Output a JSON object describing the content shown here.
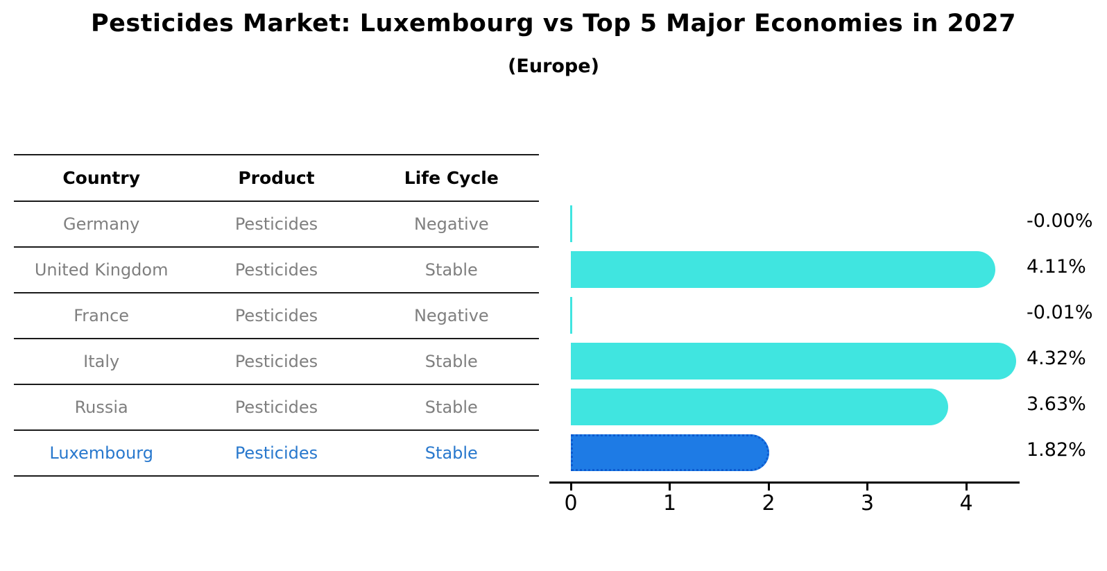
{
  "title": "Pesticides Market: Luxembourg vs Top 5 Major Economies in 2027",
  "subtitle": "(Europe)",
  "table": {
    "headers": [
      "Country",
      "Product",
      "Life Cycle"
    ],
    "rows": [
      {
        "country": "Germany",
        "product": "Pesticides",
        "life_cycle": "Negative",
        "highlight": false
      },
      {
        "country": "United Kingdom",
        "product": "Pesticides",
        "life_cycle": "Stable",
        "highlight": false
      },
      {
        "country": "France",
        "product": "Pesticides",
        "life_cycle": "Negative",
        "highlight": false
      },
      {
        "country": "Italy",
        "product": "Pesticides",
        "life_cycle": "Stable",
        "highlight": false
      },
      {
        "country": "Russia",
        "product": "Pesticides",
        "life_cycle": "Stable",
        "highlight": false
      },
      {
        "country": "Luxembourg",
        "product": "Pesticides",
        "life_cycle": "Stable",
        "highlight": true
      }
    ]
  },
  "chart_data": {
    "type": "bar",
    "orientation": "horizontal",
    "title": "Pesticides Market: Luxembourg vs Top 5 Major Economies in 2027",
    "subtitle": "(Europe)",
    "categories": [
      "Germany",
      "United Kingdom",
      "France",
      "Italy",
      "Russia",
      "Luxembourg"
    ],
    "values": [
      -0.0,
      4.11,
      -0.01,
      4.32,
      3.63,
      1.82
    ],
    "value_labels": [
      "-0.00%",
      "4.11%",
      "-0.01%",
      "4.32%",
      "3.63%",
      "1.82%"
    ],
    "x_ticks": [
      "0",
      "1",
      "2",
      "3",
      "4"
    ],
    "x_tick_values": [
      0,
      1,
      2,
      3,
      4
    ],
    "xlim": [
      -0.22,
      4.54
    ],
    "grid": false,
    "legend": false,
    "highlight_index": 5
  },
  "colors": {
    "bar": "#40e5e0",
    "highlight_bar": "#1e7be5",
    "highlight_bar_border": "#0c5acf",
    "highlight_text": "#2878cd",
    "muted_text": "#7f7f7f",
    "text": "#000000",
    "table_line": "#1a1a1a"
  }
}
